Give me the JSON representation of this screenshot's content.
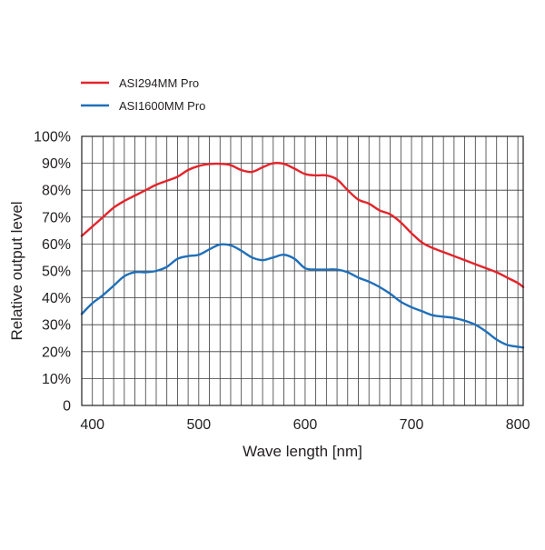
{
  "chart_data": {
    "type": "line",
    "title": "",
    "xlabel": "Wave length [nm]",
    "ylabel": "Relative output level",
    "xlim": [
      390,
      805
    ],
    "ylim": [
      0,
      100
    ],
    "x_ticks": [
      400,
      500,
      600,
      700,
      800
    ],
    "x_tick_labels": [
      "400",
      "500",
      "600",
      "700",
      "800"
    ],
    "y_ticks": [
      0,
      10,
      20,
      30,
      40,
      50,
      60,
      70,
      80,
      90,
      100
    ],
    "y_tick_labels": [
      "0",
      "10%",
      "20%",
      "30%",
      "40%",
      "50%",
      "60%",
      "70%",
      "80%",
      "90%",
      "100%"
    ],
    "grid": true,
    "grid_x_step": 10,
    "legend_position": "top-left, above the plot",
    "series": [
      {
        "name": "ASI294MM Pro",
        "color": "#e3242b",
        "x": [
          390,
          400,
          410,
          420,
          430,
          440,
          450,
          460,
          470,
          480,
          490,
          500,
          510,
          520,
          530,
          540,
          550,
          560,
          570,
          580,
          590,
          600,
          610,
          620,
          630,
          640,
          650,
          660,
          670,
          680,
          690,
          700,
          710,
          720,
          730,
          740,
          750,
          760,
          770,
          780,
          790,
          800,
          805
        ],
        "y": [
          63,
          66.5,
          70,
          73.5,
          76,
          78,
          80,
          82,
          83.5,
          85,
          87.5,
          89,
          89.7,
          89.8,
          89.3,
          87.5,
          86.8,
          88.5,
          90,
          89.8,
          88,
          86,
          85.5,
          85.5,
          84,
          80,
          76.5,
          75,
          72.5,
          71,
          68,
          64,
          60.5,
          58.5,
          57,
          55.5,
          54,
          52.5,
          51,
          49.5,
          47.5,
          45.5,
          44
        ]
      },
      {
        "name": "ASI1600MM Pro",
        "color": "#1f6fb9",
        "x": [
          390,
          400,
          410,
          420,
          430,
          440,
          450,
          460,
          470,
          480,
          490,
          500,
          510,
          520,
          530,
          540,
          550,
          560,
          570,
          580,
          590,
          600,
          610,
          620,
          630,
          640,
          650,
          660,
          670,
          680,
          690,
          700,
          710,
          720,
          730,
          740,
          750,
          760,
          770,
          780,
          790,
          800,
          805
        ],
        "y": [
          34,
          38,
          41,
          44.5,
          48,
          49.5,
          49.5,
          50,
          51.5,
          54.5,
          55.5,
          56,
          58,
          59.8,
          59.5,
          57.5,
          55,
          54,
          55,
          56,
          54.5,
          51,
          50.5,
          50.5,
          50.5,
          49.5,
          47.5,
          46,
          44,
          41.5,
          38.5,
          36.5,
          35,
          33.5,
          33,
          32.5,
          31.5,
          30,
          27.5,
          24.5,
          22.5,
          21.8,
          21.5
        ]
      }
    ]
  }
}
